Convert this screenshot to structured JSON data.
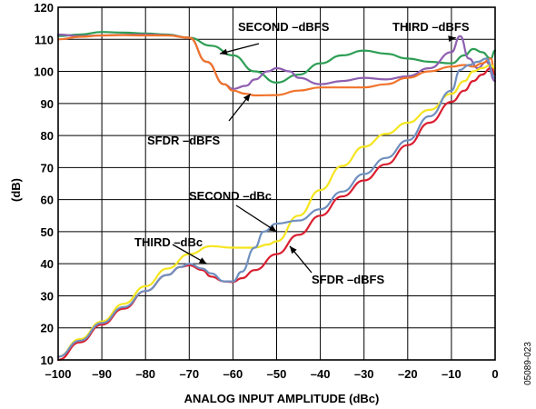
{
  "figure_code": "05089-023",
  "chart_data": {
    "type": "line",
    "title": "",
    "xlabel": "ANALOG INPUT AMPLITUDE (dBc)",
    "ylabel": "(dB)",
    "xlim": [
      -100,
      0
    ],
    "ylim": [
      10,
      120
    ],
    "xticks": [
      -100,
      -90,
      -80,
      -70,
      -60,
      -50,
      -40,
      -30,
      -20,
      -10,
      0
    ],
    "yticks": [
      10,
      20,
      30,
      40,
      50,
      60,
      70,
      80,
      90,
      100,
      110,
      120
    ],
    "xtick_labels": [
      "–100",
      "–90",
      "–80",
      "–70",
      "–60",
      "–50",
      "–40",
      "–30",
      "–20",
      "–10",
      "0"
    ],
    "ytick_labels": [
      "10",
      "20",
      "30",
      "40",
      "50",
      "60",
      "70",
      "80",
      "90",
      "100",
      "110",
      "120"
    ],
    "grid": true,
    "series": [
      {
        "name": "SECOND –dBFS",
        "color": "#2e9e55",
        "x": [
          -100,
          -95,
          -90,
          -85,
          -80,
          -75,
          -70,
          -65,
          -60,
          -55,
          -50,
          -45,
          -40,
          -35,
          -30,
          -25,
          -20,
          -15,
          -10,
          -7,
          -5,
          -3,
          -1,
          0
        ],
        "y": [
          111,
          111.5,
          112.3,
          112.1,
          111.8,
          111.5,
          110.5,
          108,
          105,
          100,
          96.5,
          99,
          102.5,
          105,
          106.5,
          105.5,
          104,
          103,
          102.5,
          105,
          107,
          106,
          104,
          106.5
        ]
      },
      {
        "name": "THIRD –dBFS",
        "color": "#8e5fb0",
        "x": [
          -100,
          -95,
          -90,
          -85,
          -80,
          -75,
          -70,
          -66,
          -62,
          -60,
          -57,
          -55,
          -52,
          -50,
          -47,
          -45,
          -40,
          -35,
          -30,
          -25,
          -20,
          -15,
          -10,
          -8,
          -6,
          -4,
          -2,
          0
        ],
        "y": [
          111.5,
          111,
          111.2,
          111.4,
          111.5,
          111.3,
          110.5,
          103,
          96,
          94.5,
          95.5,
          97.5,
          100,
          101,
          100,
          98,
          96,
          97,
          98,
          97.5,
          98.5,
          101,
          106,
          111,
          104,
          101,
          103,
          97
        ]
      },
      {
        "name": "SFDR –dBFS",
        "color": "#f0732a",
        "x": [
          -100,
          -95,
          -90,
          -85,
          -80,
          -75,
          -70,
          -66,
          -62,
          -60,
          -57,
          -55,
          -50,
          -45,
          -40,
          -35,
          -30,
          -25,
          -20,
          -15,
          -10,
          -7,
          -5,
          -3,
          -1,
          0
        ],
        "y": [
          110,
          110.8,
          111.2,
          111.3,
          111.2,
          111.2,
          110.5,
          103,
          96,
          94,
          93,
          92.5,
          92.6,
          94,
          95,
          95,
          95,
          96,
          98,
          100,
          101.5,
          102,
          101.5,
          102.5,
          104,
          99
        ]
      },
      {
        "name": "THIRD –dBc",
        "color": "#f5e51e",
        "x": [
          -100,
          -95,
          -90,
          -85,
          -80,
          -75,
          -70,
          -65,
          -60,
          -55,
          -52,
          -50,
          -45,
          -40,
          -35,
          -30,
          -25,
          -20,
          -15,
          -10,
          -7,
          -5,
          -3,
          -1,
          0
        ],
        "y": [
          11,
          16.5,
          22,
          27.5,
          33,
          38.5,
          43,
          45.5,
          45,
          45,
          46,
          47,
          55,
          63,
          70.5,
          76.5,
          80.5,
          84,
          88,
          93,
          97,
          100,
          101,
          102,
          101
        ]
      },
      {
        "name": "SFDR –dBFS",
        "color": "#d91f30",
        "x": [
          -100,
          -95,
          -90,
          -85,
          -80,
          -75,
          -72,
          -70,
          -67,
          -65,
          -62,
          -60,
          -58,
          -55,
          -50,
          -45,
          -40,
          -35,
          -30,
          -25,
          -20,
          -15,
          -10,
          -7,
          -5,
          -3,
          -1,
          0
        ],
        "y": [
          10,
          15.5,
          21,
          26,
          31.5,
          36.5,
          39,
          39.5,
          38,
          36,
          34.5,
          34.3,
          35.5,
          38,
          43,
          49,
          55,
          61,
          66,
          71,
          77,
          84,
          90.5,
          94,
          97,
          99,
          101,
          99
        ]
      },
      {
        "name": "SECOND –dBc",
        "color": "#6f8fbf",
        "x": [
          -100,
          -95,
          -90,
          -85,
          -80,
          -75,
          -72,
          -70,
          -67,
          -65,
          -62,
          -60,
          -58,
          -55,
          -53,
          -50,
          -45,
          -40,
          -35,
          -30,
          -25,
          -20,
          -15,
          -10,
          -8,
          -6,
          -4,
          -2,
          0
        ],
        "y": [
          11,
          16,
          21.5,
          26.5,
          31.5,
          36.5,
          39,
          40,
          38.5,
          37,
          34.5,
          34.5,
          37.5,
          45,
          50,
          52.5,
          53.5,
          57,
          62.5,
          68,
          73,
          78.5,
          86,
          94,
          100.5,
          102,
          103,
          104,
          98
        ]
      }
    ],
    "annotations": [
      {
        "text": "SECOND –dBFS",
        "target": [
          -63,
          105.5
        ]
      },
      {
        "text": "THIRD –dBFS",
        "target": [
          -9,
          110.5
        ]
      },
      {
        "text": "SFDR –dBFS",
        "target": [
          -56,
          93
        ]
      },
      {
        "text": "SECOND –dBc",
        "target": [
          -50,
          50
        ]
      },
      {
        "text": "THIRD –dBc",
        "target": [
          -66,
          40
        ]
      },
      {
        "text": "SFDR –dBFS",
        "target": [
          -47,
          45.5
        ]
      }
    ]
  }
}
